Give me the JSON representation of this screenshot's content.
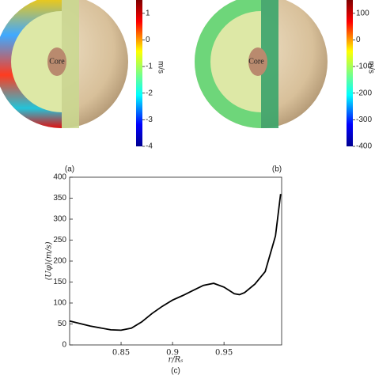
{
  "chart_data": [
    {
      "type": "colorbar",
      "title": "(a)",
      "colorbar_label": "m/s",
      "annotations": [
        "Core"
      ],
      "ylim": [
        -4,
        1.5
      ],
      "yticks": [
        -4,
        -3,
        -2,
        -1,
        0,
        1
      ]
    },
    {
      "type": "colorbar",
      "title": "(b)",
      "colorbar_label": "m/s",
      "annotations": [
        "Core"
      ],
      "ylim": [
        -400,
        150
      ],
      "yticks": [
        -400,
        -300,
        -200,
        -100,
        0,
        100
      ]
    },
    {
      "type": "line",
      "title": "(c)",
      "x_label": "r/Rₛ",
      "y_label": "⟨Uφ⟩(m/s)",
      "color": "#000000",
      "x": [
        0.8,
        0.82,
        0.84,
        0.85,
        0.86,
        0.87,
        0.88,
        0.89,
        0.9,
        0.91,
        0.92,
        0.93,
        0.94,
        0.95,
        0.96,
        0.965,
        0.97,
        0.98,
        0.99,
        1.0,
        1.005
      ],
      "values": [
        57,
        45,
        36,
        35,
        40,
        55,
        75,
        92,
        107,
        118,
        130,
        142,
        147,
        138,
        122,
        120,
        125,
        145,
        175,
        260,
        360
      ],
      "xlim": [
        0.8,
        1.006
      ],
      "ylim": [
        0,
        400
      ],
      "xticks": [
        0.85,
        0.9,
        0.95
      ],
      "yticks": [
        0,
        50,
        100,
        150,
        200,
        250,
        300,
        350,
        400
      ]
    }
  ]
}
